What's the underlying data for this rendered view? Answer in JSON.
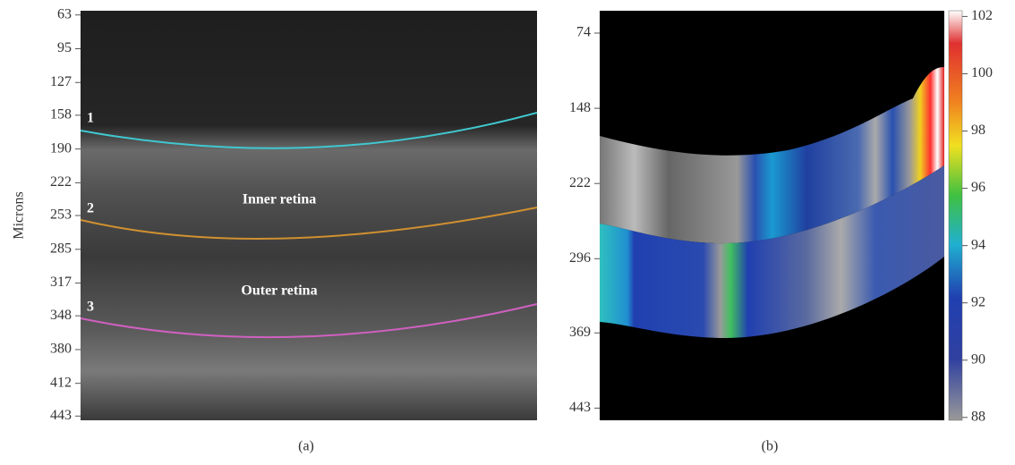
{
  "panel_a": {
    "y_axis_label": "Microns",
    "ylim": [
      59,
      447
    ],
    "yticks": [
      63,
      95,
      127,
      158,
      190,
      222,
      253,
      285,
      317,
      348,
      380,
      412,
      443
    ],
    "layer_numbers": [
      "1",
      "2",
      "3"
    ],
    "region_labels": [
      "Inner retina",
      "Outer retina"
    ],
    "caption": "(a)"
  },
  "panel_b": {
    "ylim": [
      52,
      455
    ],
    "yticks": [
      74,
      148,
      222,
      296,
      369,
      443
    ],
    "colorbar_lim": [
      87.9,
      102.2
    ],
    "colorbar_ticks": [
      88,
      90,
      92,
      94,
      96,
      98,
      100,
      102
    ],
    "caption": "(b)"
  }
}
